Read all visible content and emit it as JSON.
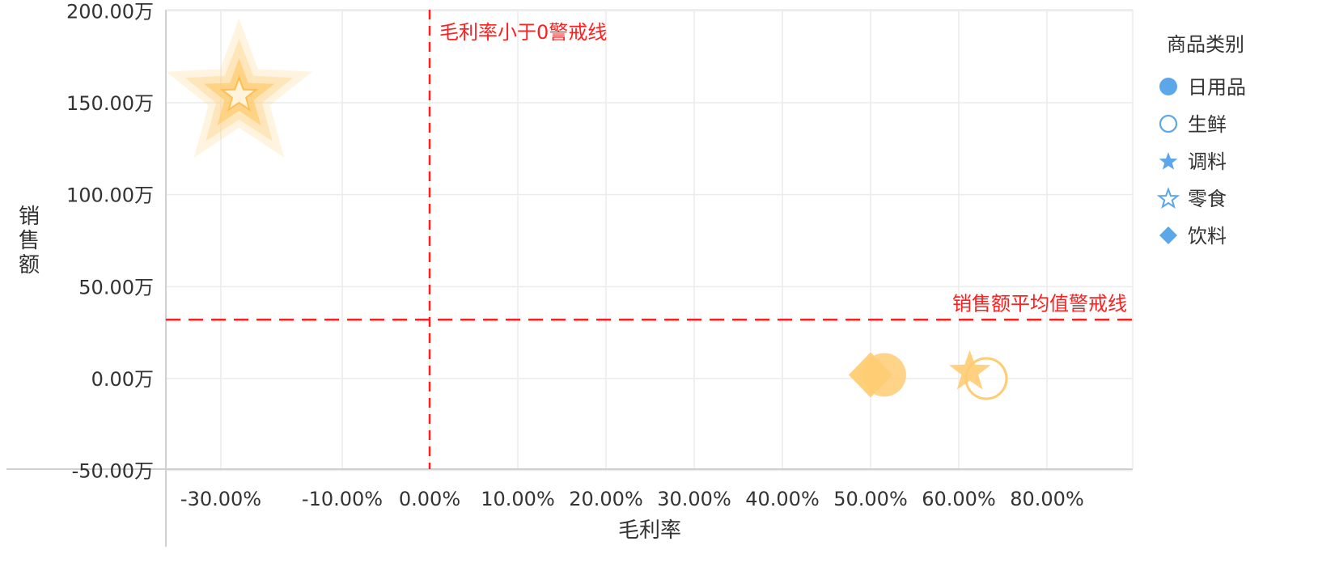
{
  "chart_data": {
    "type": "scatter",
    "xlabel": "毛利率",
    "ylabel": "销售额",
    "x_ticks": [
      {
        "value": -0.3,
        "label": "-30.00%"
      },
      {
        "value": -0.1,
        "label": "-10.00%"
      },
      {
        "value": 0.0,
        "label": "0.00%"
      },
      {
        "value": 0.1,
        "label": "10.00%"
      },
      {
        "value": 0.2,
        "label": "20.00%"
      },
      {
        "value": 0.3,
        "label": "30.00%"
      },
      {
        "value": 0.4,
        "label": "40.00%"
      },
      {
        "value": 0.5,
        "label": "50.00%"
      },
      {
        "value": 0.6,
        "label": "60.00%"
      },
      {
        "value": 0.8,
        "label": "80.00%"
      }
    ],
    "y_ticks": [
      {
        "value": -500000,
        "label": "-50.00万"
      },
      {
        "value": 0,
        "label": "0.00万"
      },
      {
        "value": 500000,
        "label": "50.00万"
      },
      {
        "value": 1000000,
        "label": "100.00万"
      },
      {
        "value": 1500000,
        "label": "150.00万"
      },
      {
        "value": 2000000,
        "label": "200.00万"
      }
    ],
    "xlim": [
      -0.3,
      0.8
    ],
    "ylim": [
      -500000,
      2000000
    ],
    "grid": true,
    "legend": {
      "title": "商品类别",
      "position": "right",
      "entries": [
        {
          "name": "日用品",
          "marker": "circle-filled"
        },
        {
          "name": "生鲜",
          "marker": "circle-hollow"
        },
        {
          "name": "调料",
          "marker": "star-filled"
        },
        {
          "name": "零食",
          "marker": "star-hollow"
        },
        {
          "name": "饮料",
          "marker": "diamond-filled"
        }
      ]
    },
    "reference_lines": [
      {
        "axis": "x",
        "value": 0.0,
        "label": "毛利率小于0警戒线",
        "color": "#ff1f1f"
      },
      {
        "axis": "y",
        "value": 320000,
        "label": "销售额平均值警戒线",
        "color": "#ff1f1f"
      }
    ],
    "series": [
      {
        "name": "日用品",
        "marker": "circle-filled",
        "points": [
          {
            "x": 0.51,
            "y": 20000
          }
        ]
      },
      {
        "name": "生鲜",
        "marker": "circle-hollow",
        "points": [
          {
            "x": 0.655,
            "y": 0
          }
        ]
      },
      {
        "name": "调料",
        "marker": "star-filled",
        "points": [
          {
            "x": 0.625,
            "y": 10000
          }
        ]
      },
      {
        "name": "零食",
        "marker": "star-hollow",
        "points": [
          {
            "x": -0.27,
            "y": 1540000
          }
        ]
      },
      {
        "name": "饮料",
        "marker": "diamond-filled",
        "points": [
          {
            "x": 0.5,
            "y": 20000
          }
        ]
      }
    ],
    "colors": {
      "legend_marker": "#5ba7ea",
      "point": "#ffcc73",
      "point_stroke": "#ffbe55",
      "reference_line": "#ff1f1f",
      "grid": "#ececec",
      "axis": "#d0d0d0"
    }
  }
}
